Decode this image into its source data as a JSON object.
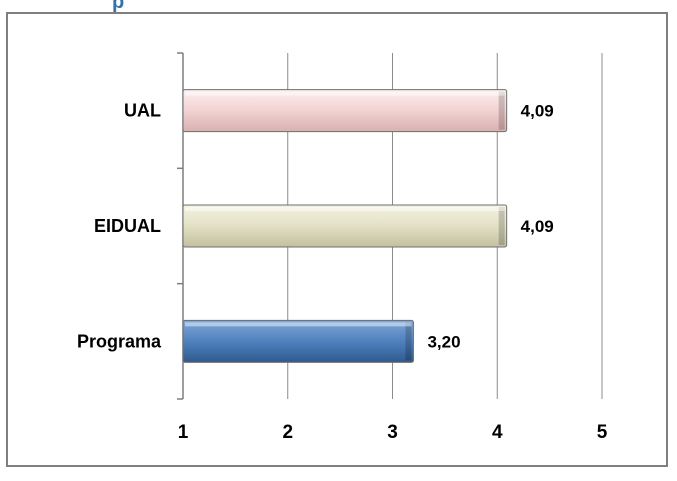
{
  "heading_fragment": "p",
  "chart_data": {
    "type": "bar",
    "orientation": "horizontal",
    "categories": [
      "UAL",
      "EIDUAL",
      "Programa"
    ],
    "values": [
      4.09,
      4.09,
      3.2
    ],
    "value_labels": [
      "4,09",
      "4,09",
      "3,20"
    ],
    "xlim": [
      1,
      5
    ],
    "x_ticks": [
      1,
      2,
      3,
      4,
      5
    ],
    "x_tick_labels": [
      "1",
      "2",
      "3",
      "4",
      "5"
    ],
    "grid": true,
    "legend": "none",
    "colors": {
      "UAL": "#f2d4d4",
      "EIDUAL": "#e4e2c8",
      "Programa": "#4f81bd"
    }
  }
}
